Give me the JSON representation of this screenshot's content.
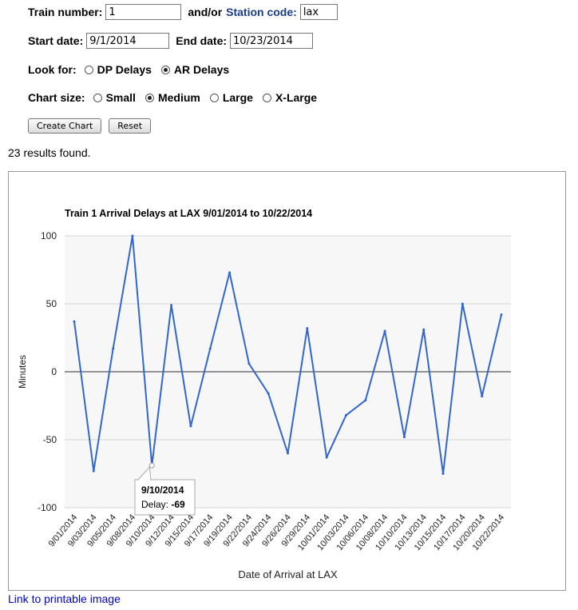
{
  "form": {
    "train_label": "Train number:",
    "train_value": "1",
    "andor_label": "and/or",
    "station_label": "Station code:",
    "station_value": "lax",
    "start_label": "Start date:",
    "start_value": "9/1/2014",
    "end_label": "End date:",
    "end_value": "10/23/2014",
    "lookfor_label": "Look for:",
    "lookfor_options": [
      "DP Delays",
      "AR Delays"
    ],
    "lookfor_selected": "AR Delays",
    "size_label": "Chart size:",
    "size_options": [
      "Small",
      "Medium",
      "Large",
      "X-Large"
    ],
    "size_selected": "Medium",
    "create_button": "Create Chart",
    "reset_button": "Reset"
  },
  "results_text": "23 results found.",
  "print_link": "Link to printable image",
  "chart_data": {
    "type": "line",
    "title": "Train 1 Arrival Delays at LAX 9/01/2014 to 10/22/2014",
    "xlabel": "Date of Arrival at LAX",
    "ylabel": "Minutes",
    "ylim": [
      -100,
      100
    ],
    "yticks": [
      100,
      50,
      0,
      -50,
      -100
    ],
    "grid": true,
    "x": [
      "9/01/2014",
      "9/03/2014",
      "9/05/2014",
      "9/08/2014",
      "9/10/2014",
      "9/12/2014",
      "9/15/2014",
      "9/17/2014",
      "9/19/2014",
      "9/22/2014",
      "9/24/2014",
      "9/26/2014",
      "9/29/2014",
      "10/01/2014",
      "10/03/2014",
      "10/06/2014",
      "10/08/2014",
      "10/10/2014",
      "10/13/2014",
      "10/15/2014",
      "10/17/2014",
      "10/20/2014",
      "10/22/2014"
    ],
    "series": [
      {
        "values": [
          37,
          -73,
          17,
          100,
          -69,
          49,
          -40,
          17,
          73,
          6,
          -16,
          -60,
          32,
          -63,
          -32,
          -21,
          30,
          -48,
          31,
          -75,
          50,
          -18,
          42
        ],
        "color": "#3366cc"
      }
    ],
    "tooltip": {
      "date": "9/10/2014",
      "label": "Delay:",
      "value": "-69"
    }
  }
}
